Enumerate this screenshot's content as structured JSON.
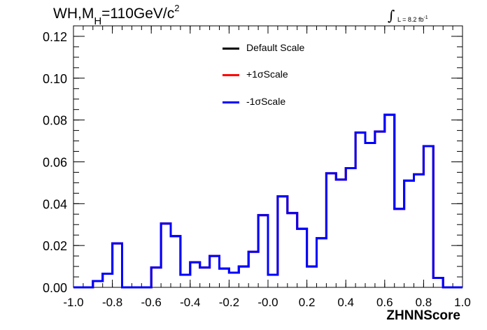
{
  "title": {
    "main_prefix": "WH,M",
    "sub": "H",
    "main_mid": "=110GeV/c",
    "sup": "2"
  },
  "lumi": {
    "integral": "∫",
    "text": "L = 8.2 fb",
    "exp": "-1"
  },
  "chart_data": {
    "type": "histogram",
    "xlabel": "ZHNNScore",
    "ylabel": "",
    "xlim": [
      -1.0,
      1.0
    ],
    "ylim": [
      0.0,
      0.125
    ],
    "xticks": [
      "-1.0",
      "-0.8",
      "-0.6",
      "-0.4",
      "-0.2",
      "-0.0",
      "0.2",
      "0.4",
      "0.6",
      "0.8",
      "1.0"
    ],
    "yticks": [
      "0.00",
      "0.02",
      "0.04",
      "0.06",
      "0.08",
      "0.10",
      "0.12"
    ],
    "bin_edges": [
      -1.0,
      -0.95,
      -0.9,
      -0.85,
      -0.8,
      -0.75,
      -0.7,
      -0.65,
      -0.6,
      -0.55,
      -0.5,
      -0.45,
      -0.4,
      -0.35,
      -0.3,
      -0.25,
      -0.2,
      -0.15,
      -0.1,
      -0.05,
      0.0,
      0.05,
      0.1,
      0.15,
      0.2,
      0.25,
      0.3,
      0.35,
      0.4,
      0.45,
      0.5,
      0.55,
      0.6,
      0.65,
      0.7,
      0.75,
      0.8,
      0.85,
      0.9,
      0.95,
      1.0
    ],
    "series": [
      {
        "name": "Default Scale",
        "color": "#000000",
        "values": [
          0,
          0,
          0.003,
          0.0065,
          0.021,
          0,
          0,
          0,
          0.0095,
          0.0305,
          0.0245,
          0.006,
          0.012,
          0.0095,
          0.015,
          0.009,
          0.007,
          0.01,
          0.017,
          0.0345,
          0.006,
          0.0435,
          0.0355,
          0.028,
          0.01,
          0.0235,
          0.0545,
          0.0515,
          0.057,
          0.074,
          0.069,
          0.0745,
          0.0825,
          0.0375,
          0.051,
          0.054,
          0.0675,
          0.0045,
          0,
          0
        ]
      },
      {
        "name": "+1σScale",
        "color": "#ff0000",
        "values": [
          0,
          0,
          0.003,
          0.0065,
          0.021,
          0,
          0,
          0,
          0.0095,
          0.0305,
          0.0245,
          0.006,
          0.012,
          0.0095,
          0.015,
          0.009,
          0.007,
          0.01,
          0.017,
          0.0345,
          0.006,
          0.0435,
          0.0355,
          0.028,
          0.01,
          0.0235,
          0.0545,
          0.0515,
          0.057,
          0.074,
          0.069,
          0.0745,
          0.0825,
          0.0375,
          0.051,
          0.054,
          0.0675,
          0.0045,
          0,
          0
        ]
      },
      {
        "name": "-1σScale",
        "color": "#0000ff",
        "values": [
          0,
          0,
          0.003,
          0.0065,
          0.021,
          0,
          0,
          0,
          0.0095,
          0.0305,
          0.0245,
          0.006,
          0.012,
          0.0095,
          0.015,
          0.009,
          0.007,
          0.01,
          0.017,
          0.0345,
          0.006,
          0.0435,
          0.0355,
          0.028,
          0.01,
          0.0235,
          0.0545,
          0.0515,
          0.057,
          0.074,
          0.069,
          0.0745,
          0.0825,
          0.0375,
          0.051,
          0.054,
          0.0675,
          0.0045,
          0,
          0
        ]
      }
    ],
    "grid": false,
    "legend_position": "top-center"
  }
}
